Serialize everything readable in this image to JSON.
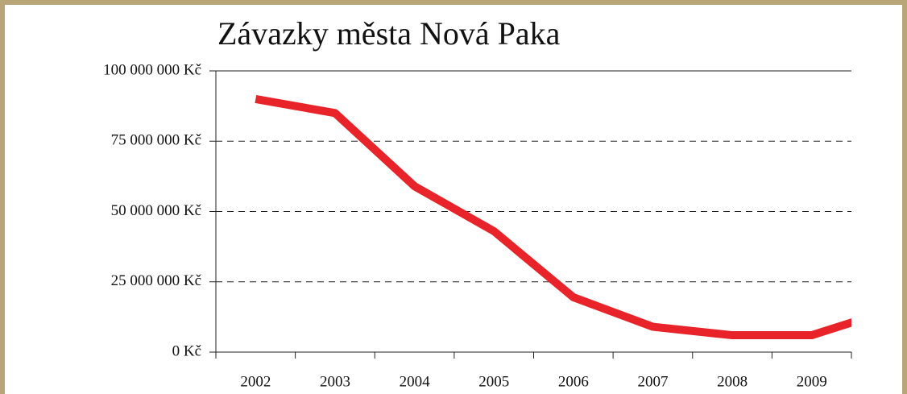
{
  "chart_data": {
    "type": "line",
    "title": "Závazky města Nová Paka",
    "categories": [
      "2002",
      "2003",
      "2004",
      "2005",
      "2006",
      "2007",
      "2008",
      "2009",
      null
    ],
    "series": [
      {
        "name": "Závazky",
        "color": "#e8242a",
        "values": [
          90000000,
          85000000,
          59000000,
          43000000,
          19500000,
          9000000,
          6000000,
          6000000,
          15000000
        ]
      }
    ],
    "ylim": [
      0,
      100000000
    ],
    "yticks": [
      {
        "value": 0,
        "label": "0 Kč"
      },
      {
        "value": 25000000,
        "label": "25 000 000 Kč"
      },
      {
        "value": 50000000,
        "label": "50 000 000 Kč"
      },
      {
        "value": 75000000,
        "label": "75 000 000 Kč"
      },
      {
        "value": 100000000,
        "label": "100 000 000 Kč"
      }
    ],
    "grid": true
  }
}
